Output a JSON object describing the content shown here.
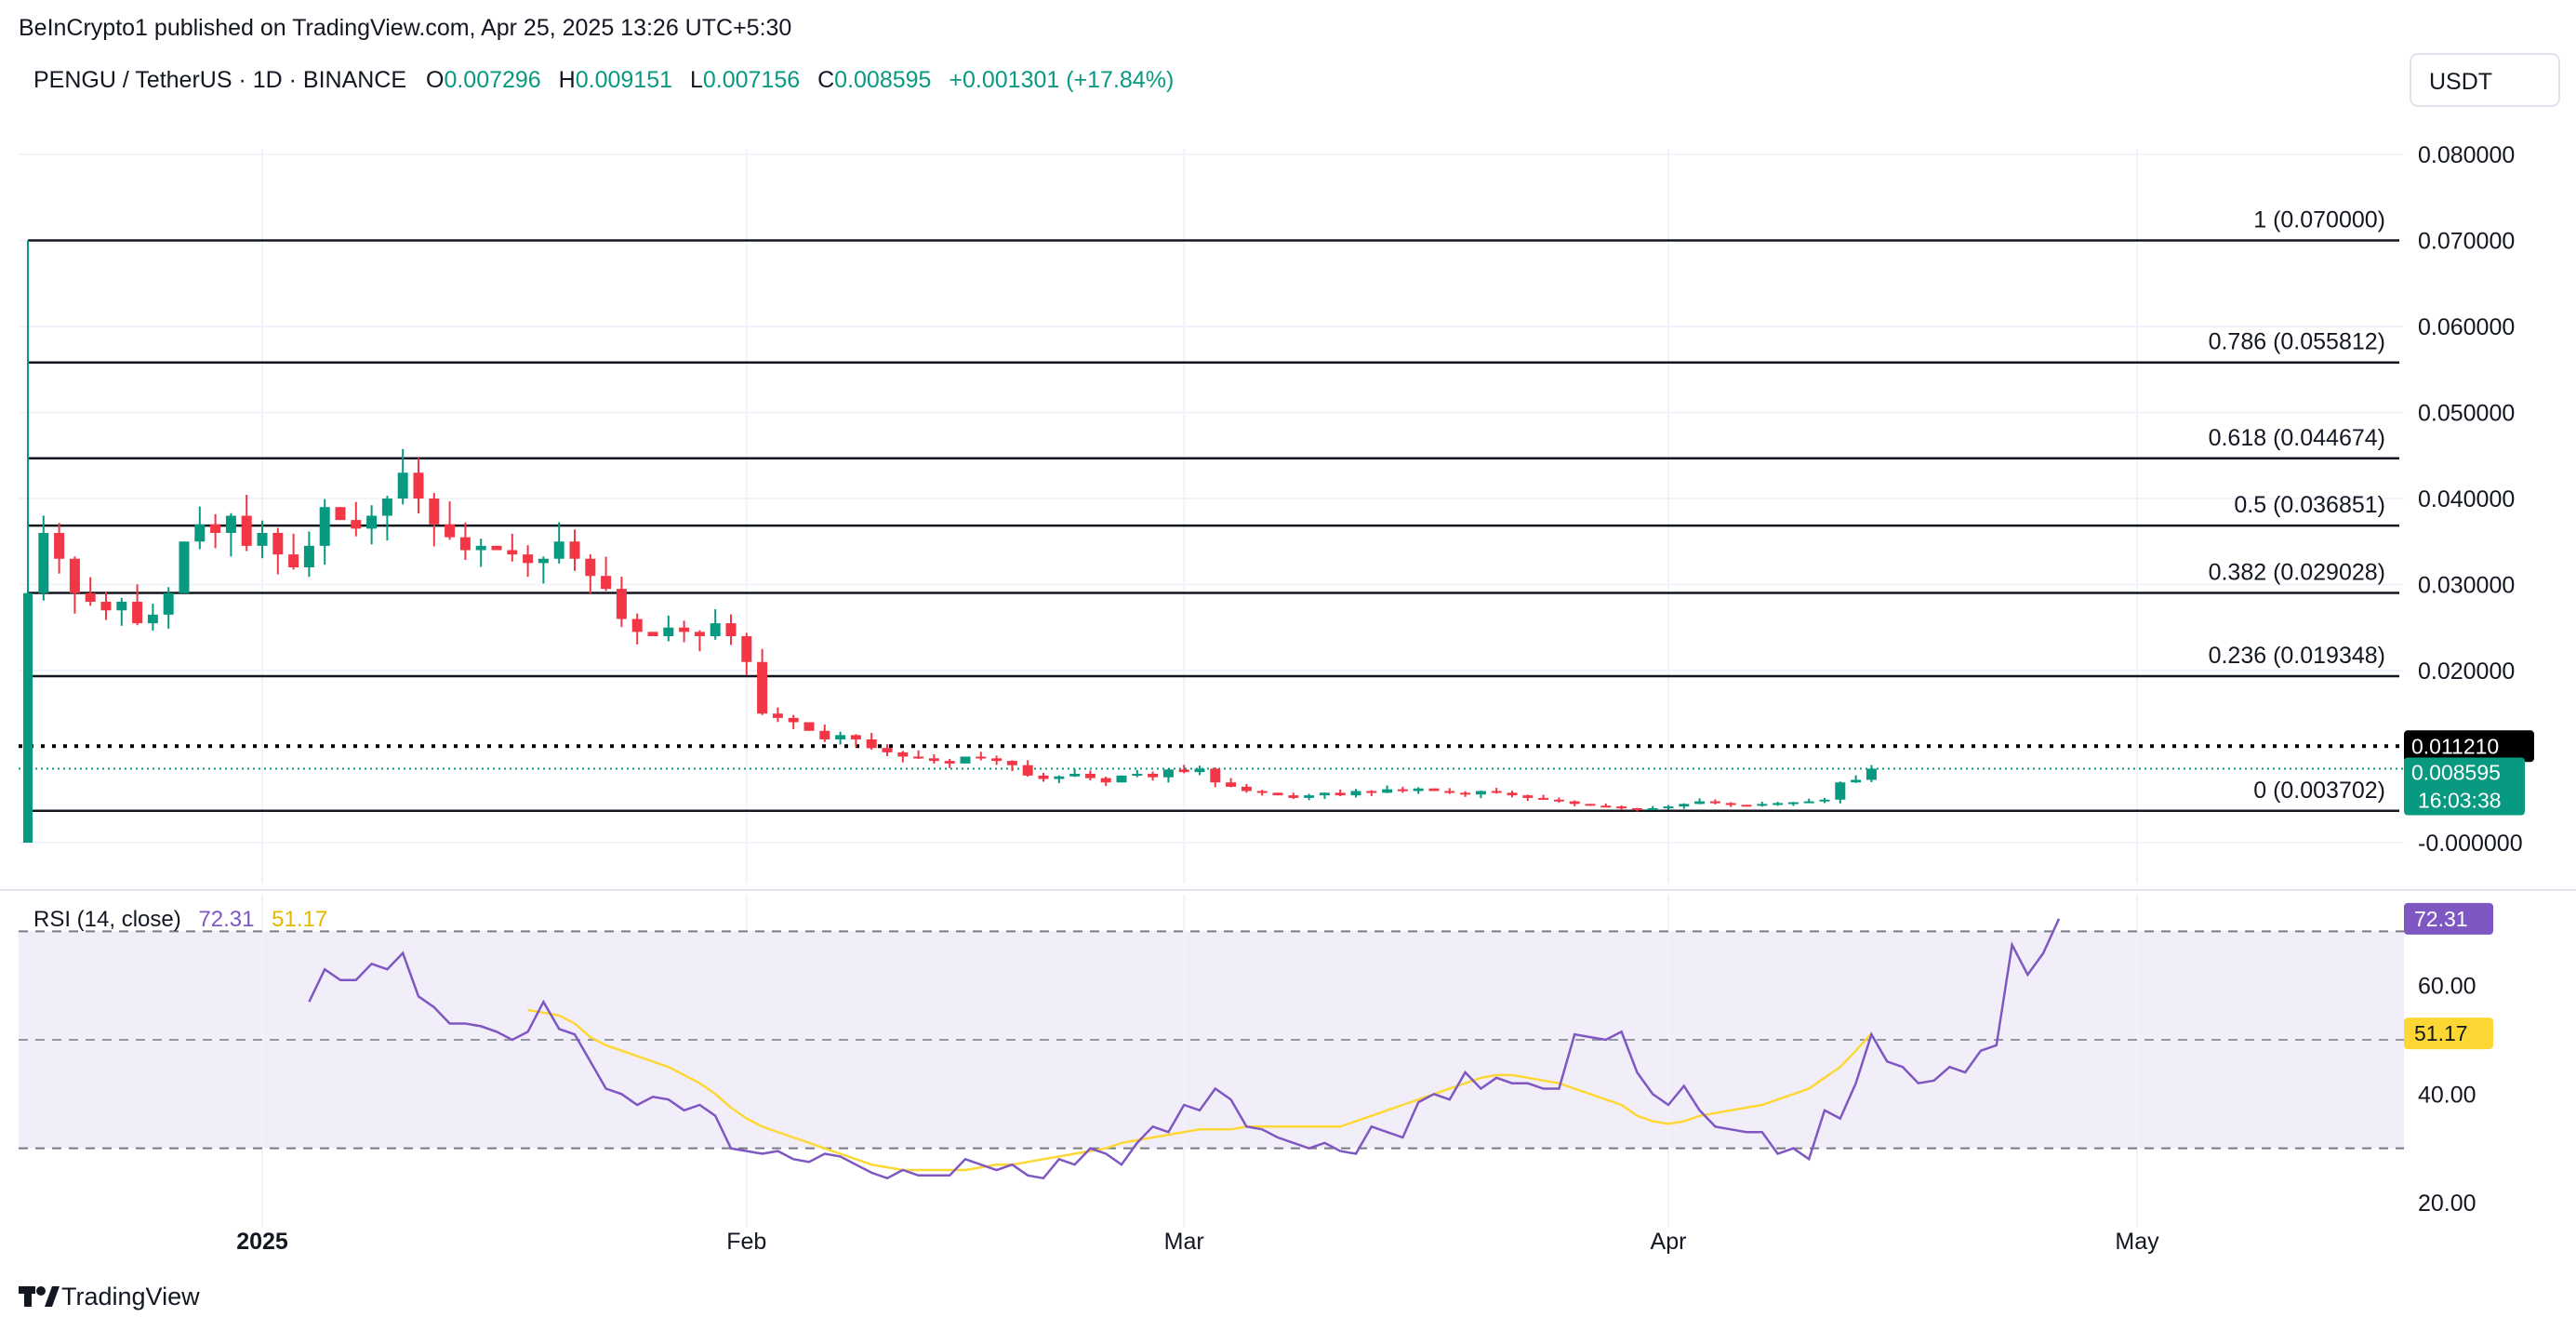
{
  "header": {
    "publisher": "BeInCrypto1 published on TradingView.com, Apr 25, 2025 13:26 UTC+5:30"
  },
  "legend": {
    "symbol": "PENGU / TetherUS · 1D · BINANCE",
    "o_label": "O",
    "o_value": "0.007296",
    "h_label": "H",
    "h_value": "0.009151",
    "l_label": "L",
    "l_value": "0.007156",
    "c_label": "C",
    "c_value": "0.008595",
    "change": "+0.001301 (+17.84%)"
  },
  "currency_button": "USDT",
  "price_axis_ticks": [
    "0.080000",
    "0.070000",
    "0.060000",
    "0.050000",
    "0.040000",
    "0.030000",
    "0.020000",
    "-0.000000"
  ],
  "dotted_level": {
    "value": 0.01121,
    "label": "0.011210"
  },
  "last_price": {
    "value": 0.008595,
    "label": "0.008595",
    "countdown": "16:03:38"
  },
  "fib_levels": [
    {
      "ratio": "1",
      "value": 0.07,
      "label": "1 (0.070000)"
    },
    {
      "ratio": "0.786",
      "value": 0.055812,
      "label": "0.786 (0.055812)"
    },
    {
      "ratio": "0.618",
      "value": 0.044674,
      "label": "0.618 (0.044674)"
    },
    {
      "ratio": "0.5",
      "value": 0.036851,
      "label": "0.5 (0.036851)"
    },
    {
      "ratio": "0.382",
      "value": 0.029028,
      "label": "0.382 (0.029028)"
    },
    {
      "ratio": "0.236",
      "value": 0.019348,
      "label": "0.236 (0.019348)"
    },
    {
      "ratio": "0",
      "value": 0.003702,
      "label": "0 (0.003702)"
    }
  ],
  "rsi": {
    "title": "RSI (14, close)",
    "value_label": "72.31",
    "ma_label": "51.17",
    "axis_ticks": [
      "60.00",
      "40.00",
      "20.00"
    ],
    "upper_band": 70,
    "middle_band": 50,
    "lower_band": 30
  },
  "time_axis": [
    "2025",
    "Feb",
    "Mar",
    "Apr",
    "May"
  ],
  "footer_logo": "TradingView",
  "colors": {
    "up": "#089981",
    "down": "#f23645",
    "rsi_line": "#7e57c2",
    "rsi_ma": "#fdd835",
    "rsi_band_fill": "#ede7f6",
    "dotted_badge": "#000000",
    "price_badge": "#089981",
    "rsi_badge": "#7e57c2",
    "ma_badge": "#fdd835"
  },
  "chart_data": [
    {
      "type": "candlestick",
      "title": "PENGU / TetherUS · 1D · BINANCE",
      "ylim": [
        -0.004,
        0.084
      ],
      "x_ticks": [
        "2025",
        "Feb",
        "Mar",
        "Apr",
        "May"
      ],
      "date_range": [
        "2024-12-17",
        "2025-04-25"
      ],
      "closes": [
        0.029,
        0.036,
        0.033,
        0.029,
        0.028,
        0.027,
        0.028,
        0.0255,
        0.0265,
        0.029,
        0.035,
        0.037,
        0.036,
        0.038,
        0.0345,
        0.036,
        0.0335,
        0.032,
        0.0345,
        0.039,
        0.0375,
        0.0365,
        0.038,
        0.04,
        0.043,
        0.04,
        0.037,
        0.0355,
        0.034,
        0.0345,
        0.034,
        0.0335,
        0.0325,
        0.033,
        0.035,
        0.033,
        0.031,
        0.0295,
        0.026,
        0.0245,
        0.024,
        0.025,
        0.0245,
        0.024,
        0.0255,
        0.024,
        0.021,
        0.015,
        0.0145,
        0.014,
        0.013,
        0.012,
        0.0125,
        0.012,
        0.011,
        0.0105,
        0.01,
        0.0098,
        0.0095,
        0.0092,
        0.01,
        0.0098,
        0.0095,
        0.009,
        0.0078,
        0.0074,
        0.0077,
        0.008,
        0.0075,
        0.007,
        0.0078,
        0.008,
        0.0076,
        0.0085,
        0.0082,
        0.0086,
        0.007,
        0.0065,
        0.006,
        0.0058,
        0.0055,
        0.0052,
        0.0055,
        0.0058,
        0.0055,
        0.006,
        0.0058,
        0.0062,
        0.006,
        0.0063,
        0.006,
        0.0058,
        0.0056,
        0.006,
        0.0058,
        0.0055,
        0.0052,
        0.005,
        0.0048,
        0.0045,
        0.0043,
        0.0042,
        0.004,
        0.0039,
        0.004,
        0.0042,
        0.0045,
        0.0048,
        0.0046,
        0.0044,
        0.0043,
        0.0045,
        0.0046,
        0.0047,
        0.0048,
        0.005,
        0.007,
        0.0073,
        0.0086
      ]
    },
    {
      "type": "line",
      "title": "RSI (14, close)",
      "ylim": [
        15,
        78
      ],
      "x_ticks": [
        "2025",
        "Feb",
        "Mar",
        "Apr",
        "May"
      ],
      "series": [
        {
          "name": "RSI",
          "start_index": 18,
          "values": [
            57,
            63,
            61,
            61,
            64,
            63,
            66,
            58,
            56,
            53,
            53,
            52.5,
            51.5,
            50,
            51.5,
            57,
            52,
            51,
            46,
            41,
            40,
            38,
            39.5,
            39,
            37,
            38,
            36,
            30,
            29.5,
            29,
            29.5,
            28,
            27.5,
            29,
            28.5,
            27,
            25.5,
            24.5,
            26,
            25,
            25,
            25,
            28,
            27,
            26,
            27,
            25,
            24.5,
            28,
            27,
            30,
            29,
            27,
            31,
            34,
            33,
            38,
            37,
            41,
            39,
            34,
            33.5,
            32,
            31,
            30,
            31,
            29.5,
            29,
            34,
            33,
            32,
            38.5,
            40,
            39,
            44,
            41,
            43,
            42,
            42,
            41,
            41,
            51,
            50.5,
            50,
            51.5,
            44,
            40,
            38,
            41.5,
            37,
            34,
            33.5,
            33,
            33,
            29,
            30,
            28,
            37,
            35.5,
            42,
            51,
            46,
            45,
            42,
            42.5,
            45,
            44,
            48,
            49,
            67.5,
            62,
            66,
            72.31
          ]
        },
        {
          "name": "RSI-based MA",
          "start_index": 32,
          "values": [
            55.5,
            55,
            54.5,
            53,
            50.5,
            49,
            48,
            47,
            46,
            45,
            43.5,
            42,
            40,
            37.5,
            35.5,
            34,
            33,
            32,
            31,
            30,
            29,
            28,
            27,
            26.5,
            26,
            26,
            26,
            26,
            26,
            26.5,
            27,
            27,
            27.5,
            28,
            28.5,
            29,
            29.5,
            30,
            31,
            31.5,
            32,
            32.5,
            33,
            33.5,
            33.5,
            33.5,
            34,
            34,
            34,
            34,
            34,
            34,
            34,
            35,
            36,
            37,
            38,
            39,
            40,
            41,
            42,
            43,
            43.5,
            43.5,
            43,
            42.5,
            42,
            41,
            40,
            39,
            38,
            36,
            35,
            34.5,
            35,
            36,
            36.5,
            37,
            37.5,
            38,
            39,
            40,
            41,
            43,
            45,
            48,
            51.17
          ]
        }
      ]
    }
  ]
}
